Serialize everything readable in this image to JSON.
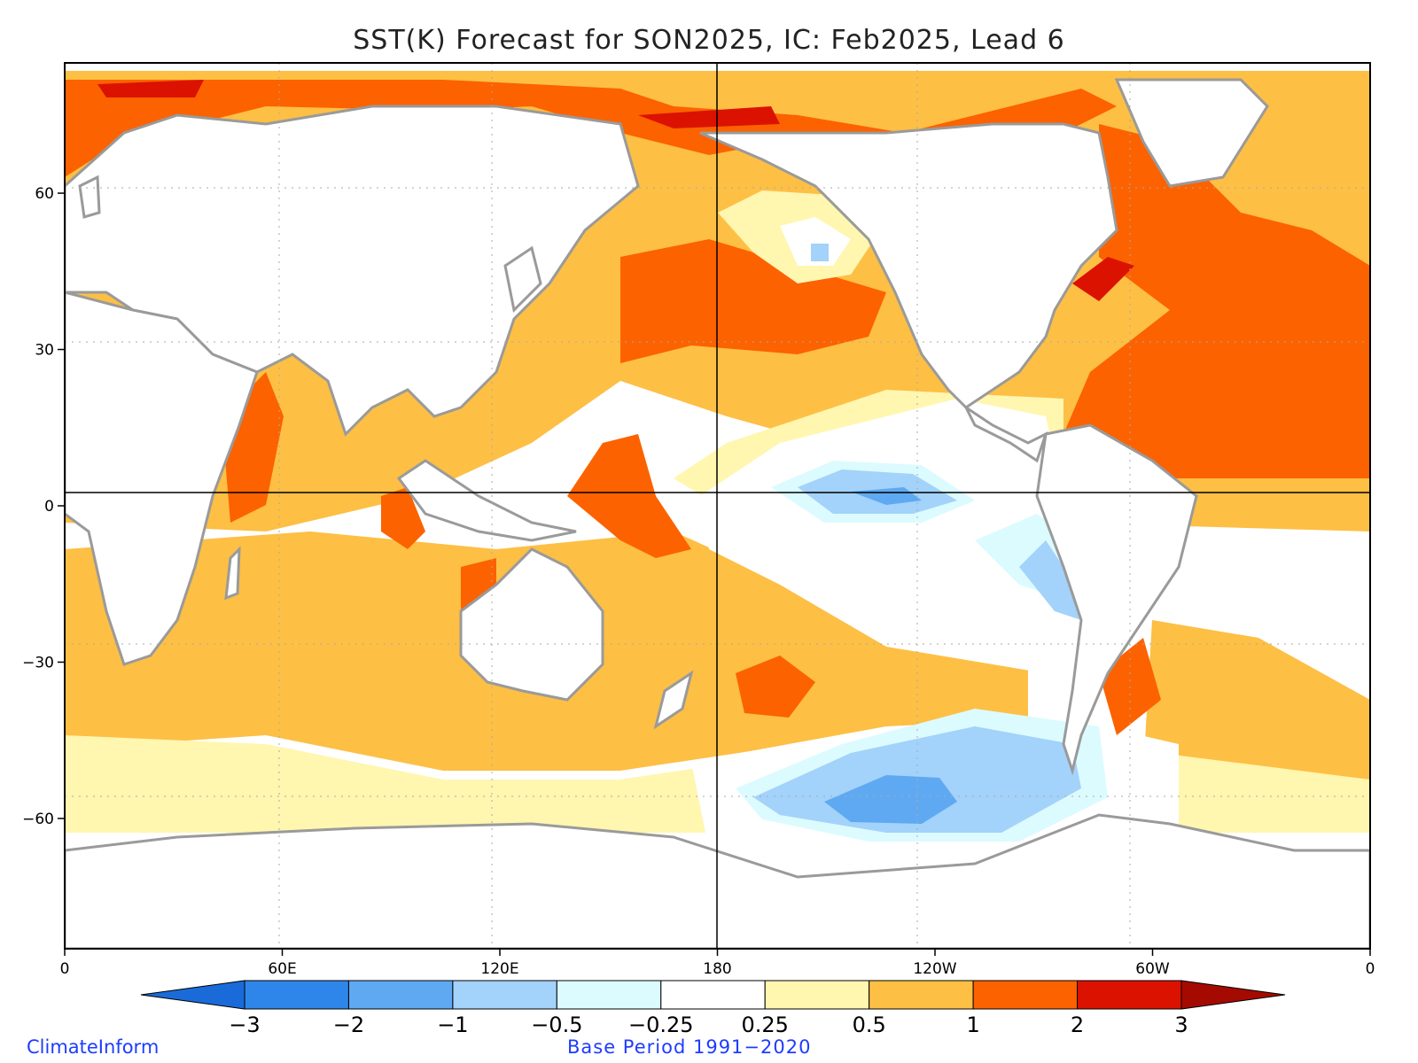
{
  "title": "SST(K) Forecast for SON2025, IC: Feb2025, Lead 6",
  "footer": {
    "source": "ClimateInform",
    "base_period": "Base Period 1991−2020"
  },
  "axes": {
    "x_ticks": [
      {
        "lon": 0,
        "label": "0"
      },
      {
        "lon": 60,
        "label": "60E"
      },
      {
        "lon": 120,
        "label": "120E"
      },
      {
        "lon": 180,
        "label": "180"
      },
      {
        "lon": 240,
        "label": "120W"
      },
      {
        "lon": 300,
        "label": "60W"
      },
      {
        "lon": 360,
        "label": "0"
      }
    ],
    "y_ticks": [
      {
        "lat": 60,
        "label": "60"
      },
      {
        "lat": 30,
        "label": "30"
      },
      {
        "lat": 0,
        "label": "0"
      },
      {
        "lat": -30,
        "label": "−30"
      },
      {
        "lat": -60,
        "label": "−60"
      }
    ],
    "lon_range": [
      0,
      360
    ],
    "lat_range": [
      -85,
      85
    ]
  },
  "colorbar": {
    "labels": [
      "−3",
      "−2",
      "−1",
      "−0.5",
      "−0.25",
      "0.25",
      "0.5",
      "1",
      "2",
      "3"
    ],
    "colors": [
      "#1a6bd9",
      "#2f86ea",
      "#5fa9f2",
      "#a3d2fa",
      "#dcfbff",
      "#ffffff",
      "#fff6b0",
      "#fdbf44",
      "#fc6200",
      "#db1200",
      "#a50a00"
    ]
  },
  "colors": {
    "land": "#ffffff",
    "coast": "#9a9a9a",
    "lakes": "#000000",
    "grid": "#aaaaaa"
  }
}
